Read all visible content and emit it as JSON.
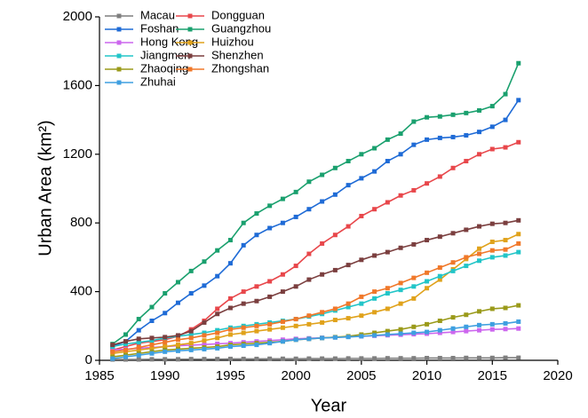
{
  "chart_data": {
    "type": "line",
    "x_label": "Year",
    "y_label": "Urban Area (km²)",
    "x": [
      1986,
      1987,
      1988,
      1989,
      1990,
      1991,
      1992,
      1993,
      1994,
      1995,
      1996,
      1997,
      1998,
      1999,
      2000,
      2001,
      2002,
      2003,
      2004,
      2005,
      2006,
      2007,
      2008,
      2009,
      2010,
      2011,
      2012,
      2013,
      2014,
      2015,
      2016,
      2017
    ],
    "xlim": [
      1985,
      2020
    ],
    "xticks": [
      1985,
      1990,
      1995,
      2000,
      2005,
      2010,
      2015,
      2020
    ],
    "ylim": [
      0,
      2000
    ],
    "yticks": [
      0,
      400,
      800,
      1200,
      1600,
      2000
    ],
    "legend": "upper left",
    "series": [
      {
        "name": "Macau",
        "color": "#7f7f7f",
        "values": [
          5,
          5,
          5,
          6,
          6,
          6,
          7,
          7,
          7,
          8,
          8,
          8,
          9,
          9,
          9,
          10,
          10,
          10,
          11,
          11,
          11,
          12,
          12,
          12,
          13,
          13,
          13,
          14,
          14,
          14,
          15,
          15
        ]
      },
      {
        "name": "Dongguan",
        "color": "#e8474b",
        "values": [
          60,
          80,
          100,
          110,
          120,
          140,
          180,
          230,
          300,
          360,
          400,
          430,
          460,
          500,
          550,
          620,
          680,
          730,
          780,
          840,
          880,
          920,
          960,
          990,
          1030,
          1070,
          1120,
          1160,
          1200,
          1230,
          1240,
          1270
        ]
      },
      {
        "name": "Foshan",
        "color": "#1f6bd6",
        "values": [
          80,
          110,
          175,
          230,
          275,
          335,
          390,
          435,
          490,
          565,
          670,
          730,
          770,
          800,
          835,
          880,
          925,
          965,
          1020,
          1060,
          1100,
          1160,
          1200,
          1255,
          1285,
          1295,
          1300,
          1310,
          1330,
          1360,
          1400,
          1515
        ]
      },
      {
        "name": "Guangzhou",
        "color": "#1aa06e",
        "values": [
          95,
          150,
          240,
          310,
          390,
          455,
          520,
          575,
          640,
          700,
          800,
          855,
          900,
          940,
          980,
          1040,
          1080,
          1120,
          1160,
          1200,
          1235,
          1285,
          1320,
          1390,
          1415,
          1420,
          1430,
          1440,
          1455,
          1480,
          1550,
          1730
        ]
      },
      {
        "name": "Hong Kong",
        "color": "#cc66ee",
        "values": [
          60,
          65,
          70,
          75,
          80,
          85,
          88,
          92,
          96,
          100,
          105,
          110,
          115,
          120,
          125,
          128,
          131,
          134,
          137,
          140,
          143,
          146,
          149,
          152,
          155,
          160,
          165,
          170,
          175,
          180,
          182,
          185
        ]
      },
      {
        "name": "Huizhou",
        "color": "#e0a21b",
        "values": [
          40,
          50,
          60,
          70,
          80,
          90,
          100,
          115,
          130,
          150,
          160,
          170,
          180,
          190,
          200,
          210,
          220,
          235,
          245,
          260,
          280,
          300,
          330,
          360,
          420,
          470,
          530,
          590,
          650,
          690,
          700,
          735
        ]
      },
      {
        "name": "Jiangmen",
        "color": "#22c5c8",
        "values": [
          80,
          95,
          105,
          115,
          130,
          140,
          150,
          160,
          175,
          190,
          200,
          210,
          220,
          230,
          240,
          255,
          270,
          290,
          310,
          330,
          360,
          390,
          410,
          430,
          460,
          490,
          520,
          550,
          580,
          600,
          610,
          630
        ]
      },
      {
        "name": "Shenzhen",
        "color": "#7b3f3f",
        "values": [
          90,
          110,
          125,
          130,
          135,
          145,
          170,
          220,
          270,
          305,
          330,
          345,
          370,
          400,
          430,
          470,
          500,
          525,
          555,
          585,
          610,
          630,
          655,
          675,
          700,
          720,
          740,
          760,
          780,
          795,
          800,
          815
        ]
      },
      {
        "name": "Zhaoqing",
        "color": "#9a9a1a",
        "values": [
          20,
          30,
          40,
          50,
          60,
          65,
          70,
          75,
          80,
          90,
          95,
          100,
          105,
          110,
          120,
          125,
          130,
          135,
          140,
          150,
          160,
          170,
          180,
          195,
          210,
          230,
          250,
          265,
          285,
          300,
          305,
          320
        ]
      },
      {
        "name": "Zhongshan",
        "color": "#f0782a",
        "values": [
          50,
          60,
          75,
          90,
          105,
          120,
          130,
          145,
          160,
          180,
          190,
          200,
          210,
          225,
          240,
          260,
          280,
          300,
          330,
          370,
          400,
          420,
          450,
          480,
          510,
          540,
          570,
          600,
          620,
          640,
          645,
          680
        ]
      },
      {
        "name": "Zhuhai",
        "color": "#3e9fe0",
        "values": [
          10,
          20,
          30,
          40,
          50,
          55,
          60,
          65,
          70,
          80,
          85,
          90,
          100,
          110,
          120,
          125,
          130,
          133,
          136,
          140,
          145,
          150,
          155,
          160,
          165,
          175,
          185,
          195,
          205,
          210,
          215,
          225
        ]
      }
    ]
  }
}
